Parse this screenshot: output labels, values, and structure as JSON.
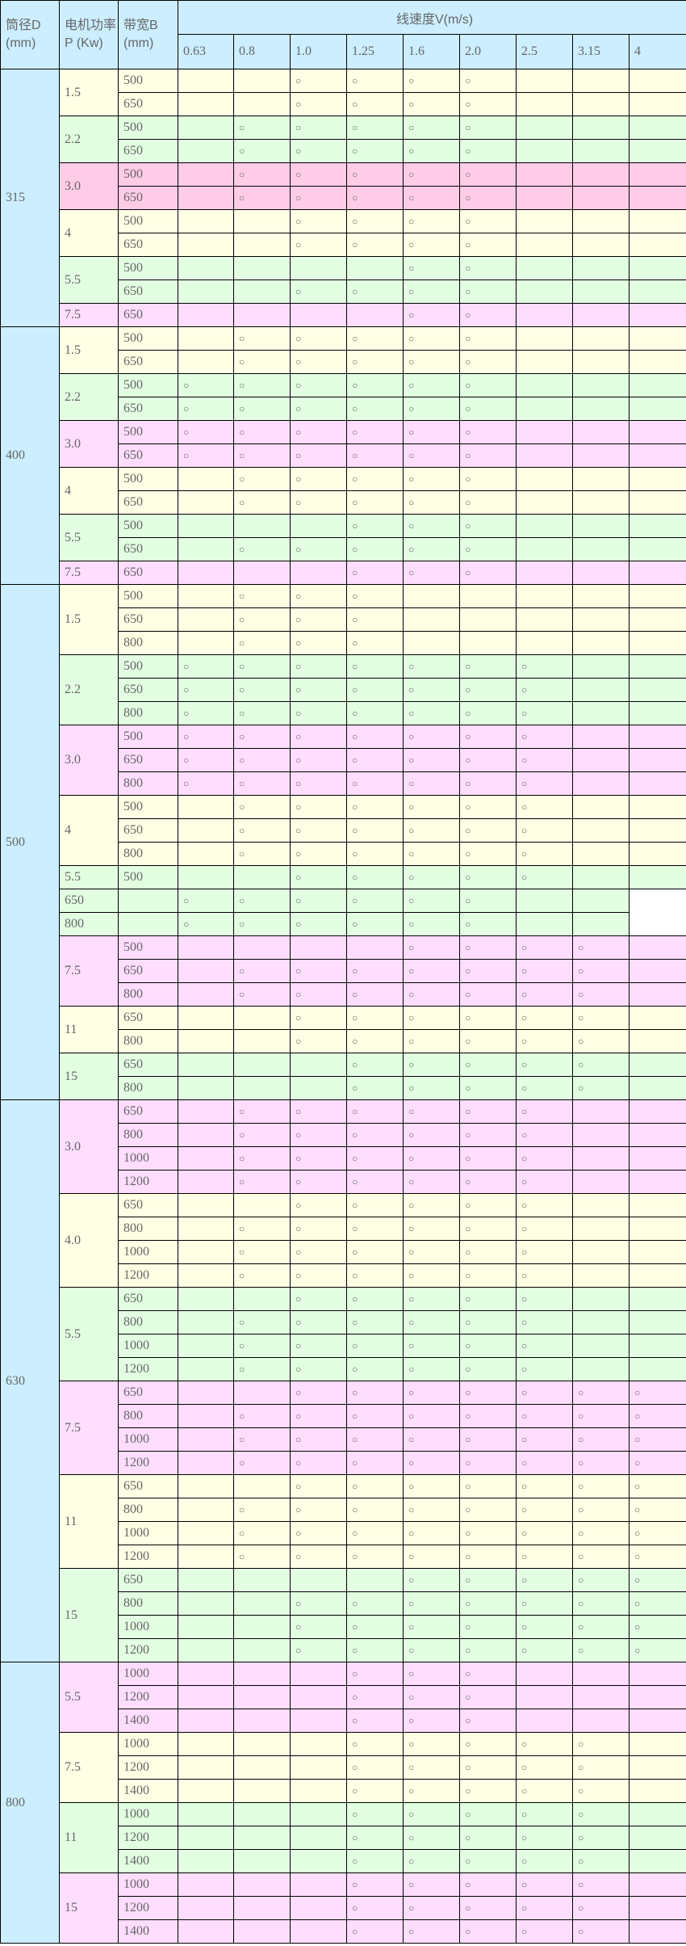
{
  "header": {
    "diameter": "筒径D (mm)",
    "power": "电机功率P (Kw)",
    "belt": "带宽B (mm)",
    "speed_title": "线速度V(m/s)",
    "speeds": [
      "0.63",
      "0.8",
      "1.0",
      "1.25",
      "1.6",
      "2.0",
      "2.5",
      "3.15",
      "4"
    ]
  },
  "mark_symbol": "○",
  "colors": {
    "header": "#cceeff",
    "yellow": "#ffffe5",
    "green": "#e2ffe2",
    "pink": "#ffddff",
    "rose": "#ffcce8"
  },
  "groups": [
    {
      "diameter": "315",
      "powers": [
        {
          "p": "1.5",
          "color": "yellow",
          "rows": [
            {
              "b": "500",
              "m": "..oooo..."
            },
            {
              "b": "650",
              "m": "..oooo..."
            }
          ]
        },
        {
          "p": "2.2",
          "color": "green",
          "rows": [
            {
              "b": "500",
              "m": ".ooooo..."
            },
            {
              "b": "650",
              "m": ".ooooo..."
            }
          ]
        },
        {
          "p": "3.0",
          "color": "rose",
          "rows": [
            {
              "b": "500",
              "m": ".ooooo..."
            },
            {
              "b": "650",
              "m": ".ooooo..."
            }
          ]
        },
        {
          "p": "4",
          "color": "yellow",
          "rows": [
            {
              "b": "500",
              "m": "..oooo..."
            },
            {
              "b": "650",
              "m": "..oooo..."
            }
          ]
        },
        {
          "p": "5.5",
          "color": "green",
          "rows": [
            {
              "b": "500",
              "m": "....oo..."
            },
            {
              "b": "650",
              "m": "..oooo..."
            }
          ]
        },
        {
          "p": "7.5",
          "color": "pink",
          "rows": [
            {
              "b": "650",
              "m": "....oo..."
            }
          ]
        }
      ]
    },
    {
      "diameter": "400",
      "powers": [
        {
          "p": "1.5",
          "color": "yellow",
          "rows": [
            {
              "b": "500",
              "m": ".ooooo..."
            },
            {
              "b": "650",
              "m": ".ooooo..."
            }
          ]
        },
        {
          "p": "2.2",
          "color": "green",
          "rows": [
            {
              "b": "500",
              "m": "oooooo..."
            },
            {
              "b": "650",
              "m": "oooooo..."
            }
          ]
        },
        {
          "p": "3.0",
          "color": "pink",
          "rows": [
            {
              "b": "500",
              "m": "oooooo..."
            },
            {
              "b": "650",
              "m": "oooooo..."
            }
          ]
        },
        {
          "p": "4",
          "color": "yellow",
          "rows": [
            {
              "b": "500",
              "m": ".ooooo..."
            },
            {
              "b": "650",
              "m": ".ooooo..."
            }
          ]
        },
        {
          "p": "5.5",
          "color": "green",
          "rows": [
            {
              "b": "500",
              "m": "...ooo..."
            },
            {
              "b": "650",
              "m": ".ooooo..."
            }
          ]
        },
        {
          "p": "7.5",
          "color": "pink",
          "rows": [
            {
              "b": "650",
              "m": "...ooo..."
            }
          ]
        }
      ]
    },
    {
      "diameter": "500",
      "powers": [
        {
          "p": "1.5",
          "color": "yellow",
          "rows": [
            {
              "b": "500",
              "m": ".ooo....."
            },
            {
              "b": "650",
              "m": ".ooo....."
            },
            {
              "b": "800",
              "m": ".ooo....."
            }
          ]
        },
        {
          "p": "2.2",
          "color": "green",
          "rows": [
            {
              "b": "500",
              "m": "ooooooo.."
            },
            {
              "b": "650",
              "m": "ooooooo.."
            },
            {
              "b": "800",
              "m": "ooooooo.."
            }
          ]
        },
        {
          "p": "3.0",
          "color": "pink",
          "rows": [
            {
              "b": "500",
              "m": "ooooooo.."
            },
            {
              "b": "650",
              "m": "ooooooo.."
            },
            {
              "b": "800",
              "m": "ooooooo.."
            }
          ]
        },
        {
          "p": "4",
          "color": "yellow",
          "rows": [
            {
              "b": "500",
              "m": ".oooooo.."
            },
            {
              "b": "650",
              "m": ".oooooo.."
            },
            {
              "b": "800",
              "m": ".oooooo.."
            }
          ]
        },
        {
          "p": "5.5",
          "color": "green",
          "rows": [
            {
              "b": "500",
              "m": "..ooooo.."
            }
          ]
        },
        {
          "p": "650",
          "color": "green",
          "broken": true,
          "rows": [
            {
              "b": "",
              "m": "oooooo.."
            }
          ]
        },
        {
          "p": "800",
          "color": "green",
          "broken": true,
          "rows": [
            {
              "b": "",
              "m": "oooooo.."
            }
          ]
        },
        {
          "p": "7.5",
          "color": "pink",
          "rows": [
            {
              "b": "500",
              "m": "....oooo."
            },
            {
              "b": "650",
              "m": ".ooooooo."
            },
            {
              "b": "800",
              "m": ".ooooooo."
            }
          ]
        },
        {
          "p": "11",
          "color": "yellow",
          "rows": [
            {
              "b": "650",
              "m": "..oooooo."
            },
            {
              "b": "800",
              "m": "..oooooo."
            }
          ]
        },
        {
          "p": "15",
          "color": "green",
          "rows": [
            {
              "b": "650",
              "m": "...ooooo."
            },
            {
              "b": "800",
              "m": "...ooooo."
            }
          ]
        }
      ]
    },
    {
      "diameter": "630",
      "powers": [
        {
          "p": "3.0",
          "color": "pink",
          "rows": [
            {
              "b": "650",
              "m": ".oooooo.."
            },
            {
              "b": "800",
              "m": ".oooooo.."
            },
            {
              "b": "1000",
              "m": ".oooooo.."
            },
            {
              "b": "1200",
              "m": ".oooooo.."
            }
          ]
        },
        {
          "p": "4.0",
          "color": "yellow",
          "rows": [
            {
              "b": "650",
              "m": "..ooooo.."
            },
            {
              "b": "800",
              "m": ".oooooo.."
            },
            {
              "b": "1000",
              "m": ".oooooo.."
            },
            {
              "b": "1200",
              "m": ".oooooo.."
            }
          ]
        },
        {
          "p": "5.5",
          "color": "green",
          "rows": [
            {
              "b": "650",
              "m": "..ooooo.."
            },
            {
              "b": "800",
              "m": ".oooooo.."
            },
            {
              "b": "1000",
              "m": ".oooooo.."
            },
            {
              "b": "1200",
              "m": ".oooooo.."
            }
          ]
        },
        {
          "p": "7.5",
          "color": "pink",
          "rows": [
            {
              "b": "650",
              "m": "..ooooooo"
            },
            {
              "b": "800",
              "m": ".oooooooo"
            },
            {
              "b": "1000",
              "m": ".oooooooo"
            },
            {
              "b": "1200",
              "m": ".oooooooo"
            }
          ]
        },
        {
          "p": "11",
          "color": "yellow",
          "rows": [
            {
              "b": "650",
              "m": "..ooooooo"
            },
            {
              "b": "800",
              "m": ".oooooooo"
            },
            {
              "b": "1000",
              "m": ".oooooooo"
            },
            {
              "b": "1200",
              "m": ".oooooooo"
            }
          ]
        },
        {
          "p": "15",
          "color": "green",
          "rows": [
            {
              "b": "650",
              "m": "....ooooo"
            },
            {
              "b": "800",
              "m": "..ooooooo"
            },
            {
              "b": "1000",
              "m": "..ooooooo"
            },
            {
              "b": "1200",
              "m": "..ooooooo"
            }
          ]
        }
      ]
    },
    {
      "diameter": "800",
      "powers": [
        {
          "p": "5.5",
          "color": "pink",
          "rows": [
            {
              "b": "1000",
              "m": "...ooo..."
            },
            {
              "b": "1200",
              "m": "...ooo..."
            },
            {
              "b": "1400",
              "m": "...ooo..."
            }
          ]
        },
        {
          "p": "7.5",
          "color": "yellow",
          "rows": [
            {
              "b": "1000",
              "m": "...ooooo."
            },
            {
              "b": "1200",
              "m": "...ooooo."
            },
            {
              "b": "1400",
              "m": "...ooooo."
            }
          ]
        },
        {
          "p": "11",
          "color": "green",
          "rows": [
            {
              "b": "1000",
              "m": "...ooooo."
            },
            {
              "b": "1200",
              "m": "...ooooo."
            },
            {
              "b": "1400",
              "m": "...ooooo."
            }
          ]
        },
        {
          "p": "15",
          "color": "pink",
          "rows": [
            {
              "b": "1000",
              "m": "...ooooo."
            },
            {
              "b": "1200",
              "m": "...ooooo."
            },
            {
              "b": "1400",
              "m": "...ooooo."
            }
          ]
        }
      ]
    }
  ]
}
